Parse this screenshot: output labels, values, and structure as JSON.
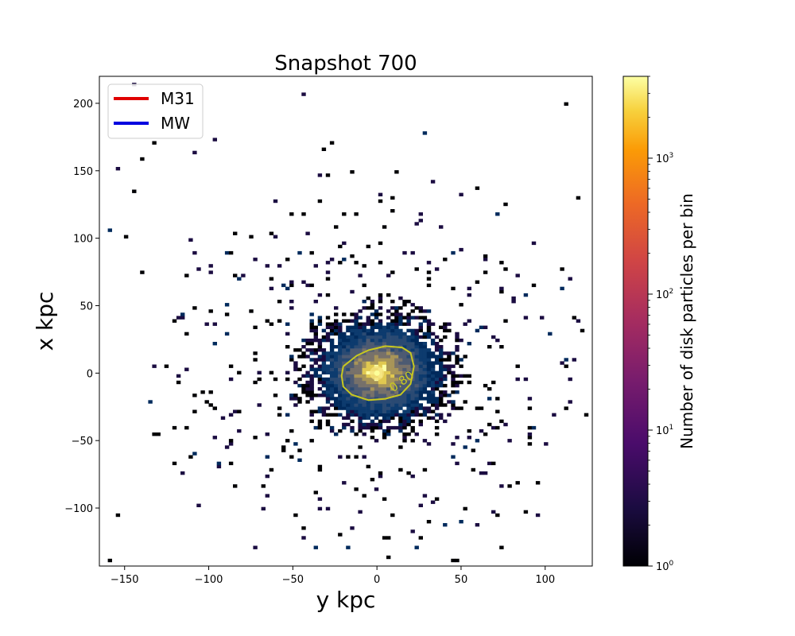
{
  "chart_data": {
    "type": "heatmap",
    "title": "Snapshot 700",
    "xlabel": "y kpc",
    "ylabel": "x kpc",
    "xlim": [
      -165,
      128
    ],
    "ylim": [
      -143,
      220
    ],
    "x_ticks": [
      -150,
      -100,
      -50,
      0,
      50,
      100
    ],
    "y_ticks": [
      -100,
      -50,
      0,
      50,
      100,
      150,
      200
    ],
    "x_tick_labels": [
      "−150",
      "−100",
      "−50",
      "0",
      "50",
      "100"
    ],
    "y_tick_labels": [
      "−100",
      "−50",
      "0",
      "50",
      "100",
      "150",
      "200"
    ],
    "legend": {
      "placement": "top-left",
      "entries": [
        {
          "label": "M31",
          "color": "#e00000"
        },
        {
          "label": "MW",
          "color": "#0000e0"
        }
      ]
    },
    "colorbar": {
      "label": "Number of disk particles per bin",
      "scale": "log",
      "range": [
        1,
        4000
      ],
      "tick_values": [
        1,
        10,
        100,
        1000
      ],
      "tick_bases": [
        "10",
        "10",
        "10",
        "10"
      ],
      "tick_exponents": [
        "0",
        "1",
        "2",
        "3"
      ],
      "colormap": "inferno"
    },
    "distribution": {
      "center": [
        0,
        0
      ],
      "core_radius_kpc": 30,
      "max_extent_kpc": 150
    },
    "contour": {
      "label": "0.80",
      "color": "#c8c820",
      "points": [
        [
          -20,
          5
        ],
        [
          -12,
          13
        ],
        [
          -5,
          17
        ],
        [
          5,
          20
        ],
        [
          15,
          19
        ],
        [
          20,
          15
        ],
        [
          22,
          5
        ],
        [
          20,
          -8
        ],
        [
          14,
          -16
        ],
        [
          5,
          -19
        ],
        [
          -5,
          -20
        ],
        [
          -15,
          -16
        ],
        [
          -20,
          -10
        ],
        [
          -21,
          -2
        ],
        [
          -20,
          5
        ]
      ]
    },
    "grid": false
  }
}
